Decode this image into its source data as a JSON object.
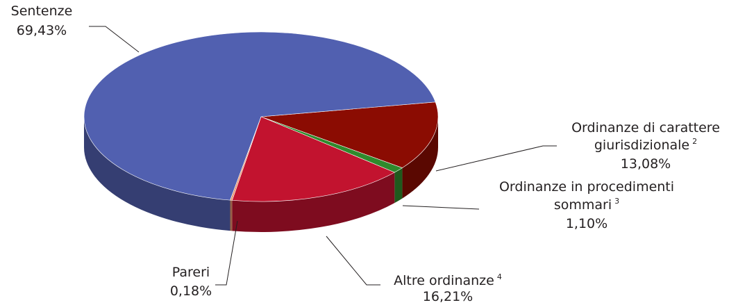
{
  "chart_data": {
    "type": "pie",
    "categories": [
      "Ordinanze di carattere giurisdizionale",
      "Ordinanze in procedimenti sommari",
      "Altre ordinanze",
      "Pareri",
      "Sentenze"
    ],
    "footnotes": [
      2,
      3,
      4,
      null,
      null
    ],
    "values": [
      13.08,
      1.1,
      16.21,
      0.18,
      69.43
    ],
    "value_labels": [
      "13,08%",
      "1,10%",
      "16,21%",
      "0,18%",
      "69,43%"
    ],
    "colors": [
      "#8b0c02",
      "#2f8a2c",
      "#c2132f",
      "#e8926c",
      "#5160b0"
    ]
  }
}
